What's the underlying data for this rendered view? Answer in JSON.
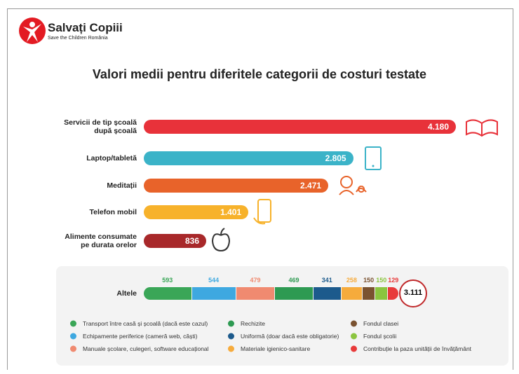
{
  "header": {
    "logo_name": "Salvați Copiii",
    "logo_tagline": "Save the Children România"
  },
  "chart_data": [
    {
      "type": "bar",
      "orientation": "horizontal",
      "title": "Valori medii pentru diferitele categorii de costuri testate",
      "categories": [
        "Servicii de tip școală după școală",
        "Laptop/tabletă",
        "Meditații",
        "Telefon mobil",
        "Alimente consumate pe durata orelor"
      ],
      "values": [
        4180,
        2805,
        2471,
        1401,
        836
      ],
      "value_labels": [
        "4.180",
        "2.805",
        "2.471",
        "1.401",
        "836"
      ],
      "colors": [
        "#e8323a",
        "#3bb3c8",
        "#e8632a",
        "#f7b22b",
        "#a8282a"
      ]
    },
    {
      "type": "stacked_bar",
      "orientation": "horizontal",
      "categories": [
        "Altele"
      ],
      "series": [
        {
          "name": "Transport între casă și școală (dacă este cazul)",
          "color": "#3aa657",
          "values": [
            593
          ]
        },
        {
          "name": "Echipamente periferice (cameră web, căști)",
          "color": "#3ea8e0",
          "values": [
            544
          ]
        },
        {
          "name": "Manuale școlare, culegeri, software educațional",
          "color": "#f08a70",
          "values": [
            479
          ]
        },
        {
          "name": "Rechizite",
          "color": "#2e9a52",
          "values": [
            469
          ]
        },
        {
          "name": "Uniformă (doar dacă este obligatorie)",
          "color": "#1c5a8c",
          "values": [
            341
          ]
        },
        {
          "name": "Materiale igienico-sanitare",
          "color": "#f6ab3c",
          "values": [
            258
          ]
        },
        {
          "name": "Fondul clasei",
          "color": "#7a5230",
          "values": [
            150
          ]
        },
        {
          "name": "Fondul școlii",
          "color": "#8bc53f",
          "values": [
            150
          ]
        },
        {
          "name": "Contribuție la paza unității de învățământ",
          "color": "#e83a3a",
          "values": [
            129
          ]
        }
      ],
      "total": {
        "value": 3111,
        "label": "3.111"
      }
    }
  ]
}
